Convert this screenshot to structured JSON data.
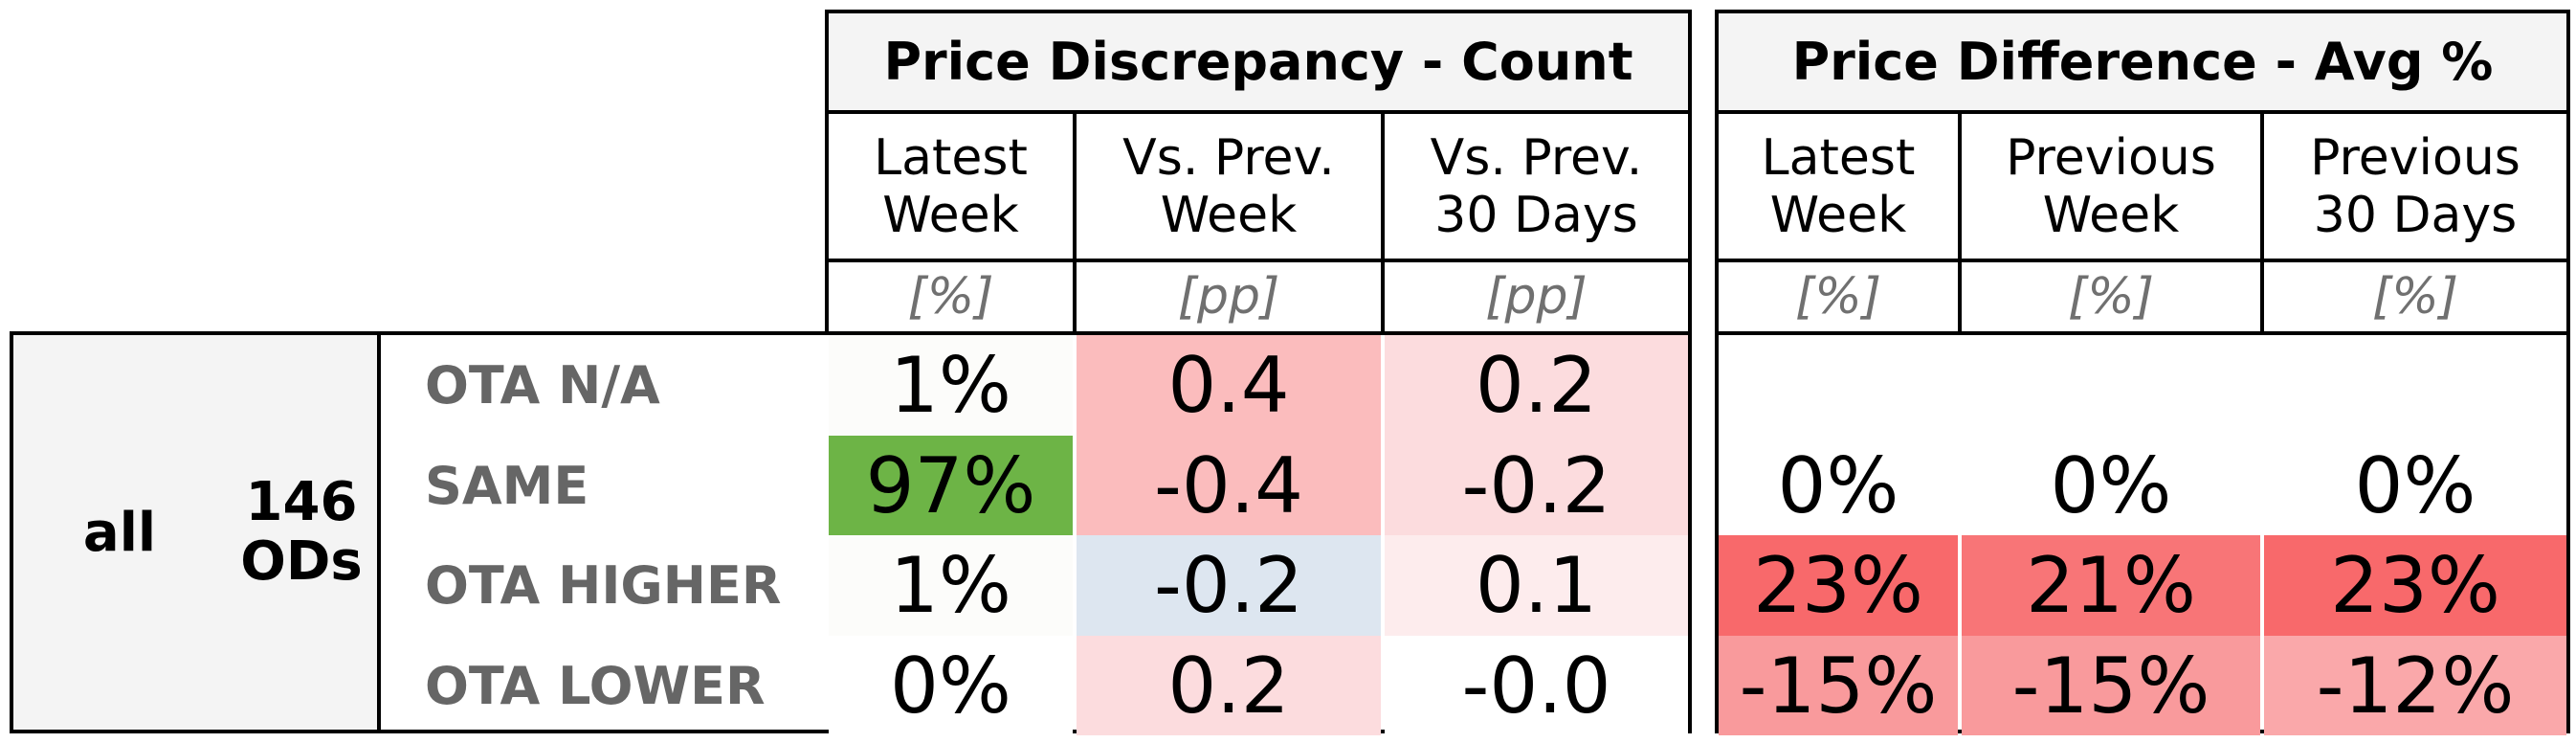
{
  "chart_data": {
    "type": "table",
    "groups": [
      {
        "title": "Price Discrepancy - Count",
        "columns": [
          {
            "label": "Latest\nWeek",
            "unit": "[%]"
          },
          {
            "label": "Vs. Prev.\nWeek",
            "unit": "[pp]"
          },
          {
            "label": "Vs. Prev.\n30 Days",
            "unit": "[pp]"
          }
        ]
      },
      {
        "title": "Price Difference - Avg %",
        "columns": [
          {
            "label": "Latest\nWeek",
            "unit": "[%]"
          },
          {
            "label": "Previous\nWeek",
            "unit": "[%]"
          },
          {
            "label": "Previous\n30 Days",
            "unit": "[%]"
          }
        ]
      }
    ],
    "segment": {
      "name": "all",
      "count_label": "146\nODs"
    },
    "rows": [
      {
        "label": "OTA N/A",
        "count": [
          {
            "text": "1%",
            "color": "#fcfcfa"
          },
          {
            "text": "0.4",
            "color": "#fbbcbd"
          },
          {
            "text": "0.2",
            "color": "#fcdcde"
          }
        ],
        "avg": [
          {
            "text": "",
            "color": "#ffffff"
          },
          {
            "text": "",
            "color": "#ffffff"
          },
          {
            "text": "",
            "color": "#ffffff"
          }
        ]
      },
      {
        "label": "SAME",
        "count": [
          {
            "text": "97%",
            "color": "#6db446"
          },
          {
            "text": "-0.4",
            "color": "#fbbcbd"
          },
          {
            "text": "-0.2",
            "color": "#fcdcde"
          }
        ],
        "avg": [
          {
            "text": "0%",
            "color": "#ffffff"
          },
          {
            "text": "0%",
            "color": "#ffffff"
          },
          {
            "text": "0%",
            "color": "#ffffff"
          }
        ]
      },
      {
        "label": "OTA HIGHER",
        "count": [
          {
            "text": "1%",
            "color": "#fcfcfa"
          },
          {
            "text": "-0.2",
            "color": "#dde6f0"
          },
          {
            "text": "0.1",
            "color": "#fdeced"
          }
        ],
        "avg": [
          {
            "text": "23%",
            "color": "#f8696b"
          },
          {
            "text": "21%",
            "color": "#f87577"
          },
          {
            "text": "23%",
            "color": "#f8696b"
          }
        ]
      },
      {
        "label": "OTA LOWER",
        "count": [
          {
            "text": "0%",
            "color": "#ffffff"
          },
          {
            "text": "0.2",
            "color": "#fcdcde"
          },
          {
            "text": "-0.0",
            "color": "#ffffff"
          }
        ],
        "avg": [
          {
            "text": "-15%",
            "color": "#f99a9c"
          },
          {
            "text": "-15%",
            "color": "#f99a9c"
          },
          {
            "text": "-12%",
            "color": "#faa8aa"
          }
        ]
      }
    ]
  }
}
